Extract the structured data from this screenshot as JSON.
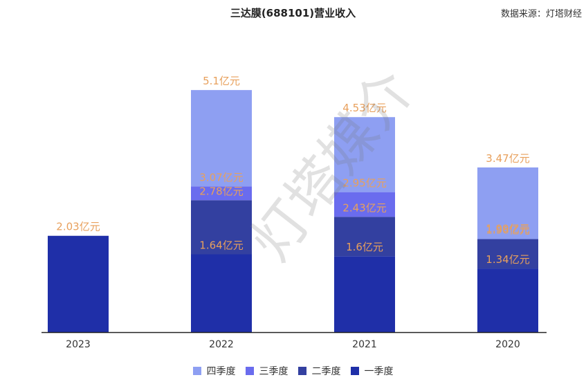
{
  "title": "三达膜(688101)营业收入",
  "source": "数据来源：灯塔财经",
  "watermark": "灯塔媒介",
  "chart_data": {
    "type": "bar",
    "stacked": true,
    "title": "三达膜(688101)营业收入",
    "categories": [
      "2023",
      "2022",
      "2021",
      "2020"
    ],
    "unit": "亿元",
    "legend_position": "bottom",
    "series": [
      {
        "name": "一季度",
        "color": "#1f2fa8",
        "values": [
          2.03,
          1.64,
          1.6,
          1.34
        ],
        "labels": [
          "2.03亿元",
          "1.64亿元",
          "1.6亿元",
          "1.34亿元"
        ]
      },
      {
        "name": "二季度",
        "color": "#3340a0",
        "values": [
          null,
          2.78,
          2.43,
          1.99
        ],
        "labels": [
          "",
          "2.78亿元",
          "2.43亿元",
          "1.99亿元"
        ]
      },
      {
        "name": "三季度",
        "color": "#6a6cee",
        "values": [
          null,
          3.07,
          2.95,
          1.96
        ],
        "labels": [
          "",
          "3.07亿元",
          "2.95亿元",
          "1.96亿元"
        ]
      },
      {
        "name": "四季度",
        "color": "#8e9ff2",
        "values": [
          null,
          5.1,
          4.53,
          3.47
        ],
        "labels": [
          "",
          "5.1亿元",
          "4.53亿元",
          "3.47亿元"
        ]
      }
    ],
    "legend_order": [
      "四季度",
      "三季度",
      "二季度",
      "一季度"
    ],
    "label_color": "#e8a05c",
    "grid": false
  }
}
